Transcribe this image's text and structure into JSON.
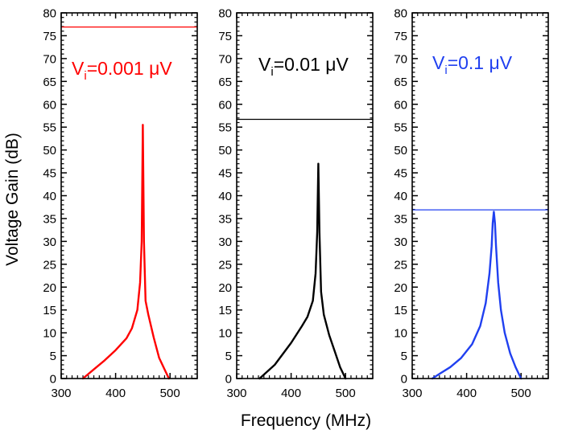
{
  "chart_data": {
    "type": "line",
    "layout": "three-panel",
    "ylabel": "Voltage Gain (dB)",
    "xlabel": "Frequency (MHz)",
    "xlim": [
      300,
      550
    ],
    "ylim": [
      0,
      80
    ],
    "x_ticks": [
      300,
      400,
      500
    ],
    "x_tick_labels": [
      "300",
      "400",
      "500"
    ],
    "y_ticks": [
      0,
      5,
      10,
      15,
      20,
      25,
      30,
      35,
      40,
      45,
      50,
      55,
      60,
      65,
      70,
      75,
      80
    ],
    "y_tick_labels": [
      "0",
      "5",
      "10",
      "15",
      "20",
      "25",
      "30",
      "35",
      "40",
      "45",
      "50",
      "55",
      "60",
      "65",
      "70",
      "75",
      "80"
    ],
    "panels": [
      {
        "color": "#ff0000",
        "annotation": {
          "main": "V",
          "sub": "i",
          "rest": "=0.001 μV"
        },
        "reference_level": 76.9,
        "series": {
          "x": [
            340,
            360,
            380,
            400,
            420,
            430,
            440,
            445,
            448,
            450,
            452,
            455,
            460,
            470,
            480,
            490,
            498
          ],
          "y": [
            0,
            2,
            4,
            6.2,
            8.8,
            11,
            15,
            21,
            30,
            55.5,
            30,
            17,
            14,
            9,
            4.5,
            2,
            0
          ]
        }
      },
      {
        "color": "#000000",
        "annotation": {
          "main": "V",
          "sub": "i",
          "rest": "=0.01 μV"
        },
        "reference_level": 56.7,
        "series": {
          "x": [
            342,
            370,
            400,
            420,
            430,
            440,
            445,
            448,
            450,
            452,
            455,
            460,
            470,
            480,
            490,
            500
          ],
          "y": [
            0,
            3,
            7.8,
            11.5,
            13.5,
            17,
            23,
            32,
            47,
            32,
            19,
            14,
            9.5,
            6,
            2.5,
            0
          ]
        }
      },
      {
        "color": "#2040f0",
        "annotation": {
          "main": "V",
          "sub": "i",
          "rest": "=0.1 μV"
        },
        "reference_level": 36.9,
        "series": {
          "x": [
            337,
            350,
            370,
            390,
            410,
            425,
            435,
            442,
            446,
            448,
            450,
            452,
            454,
            458,
            463,
            470,
            480,
            490,
            500
          ],
          "y": [
            0,
            1,
            2.5,
            4.5,
            7.5,
            11.5,
            16.5,
            23,
            29,
            34,
            36.5,
            34,
            29,
            21,
            15,
            10,
            5.5,
            2.5,
            0
          ]
        }
      }
    ]
  }
}
